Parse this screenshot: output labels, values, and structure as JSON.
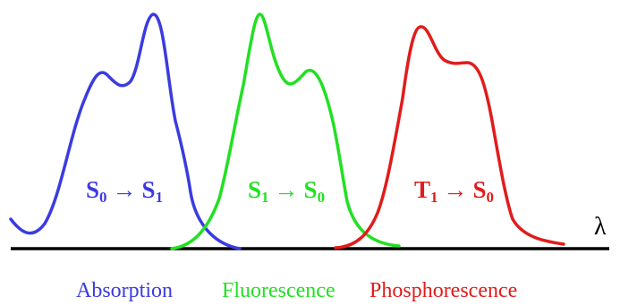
{
  "axis": {
    "symbol": "λ"
  },
  "colors": {
    "absorption": "#3b3be0",
    "fluorescence": "#22e022",
    "phosphorescence": "#e01c1c",
    "axis": "#000000"
  },
  "bands": [
    {
      "id": "absorption",
      "label": "Absorption",
      "transition": {
        "from": "S",
        "from_sub": "0",
        "arrow": "→",
        "to": "S",
        "to_sub": "1"
      }
    },
    {
      "id": "fluorescence",
      "label": "Fluorescence",
      "transition": {
        "from": "S",
        "from_sub": "1",
        "arrow": "→",
        "to": "S",
        "to_sub": "0"
      }
    },
    {
      "id": "phosphorescence",
      "label": "Phosphorescence",
      "transition": {
        "from": "T",
        "from_sub": "1",
        "arrow": "→",
        "to": "S",
        "to_sub": "0"
      }
    }
  ]
}
